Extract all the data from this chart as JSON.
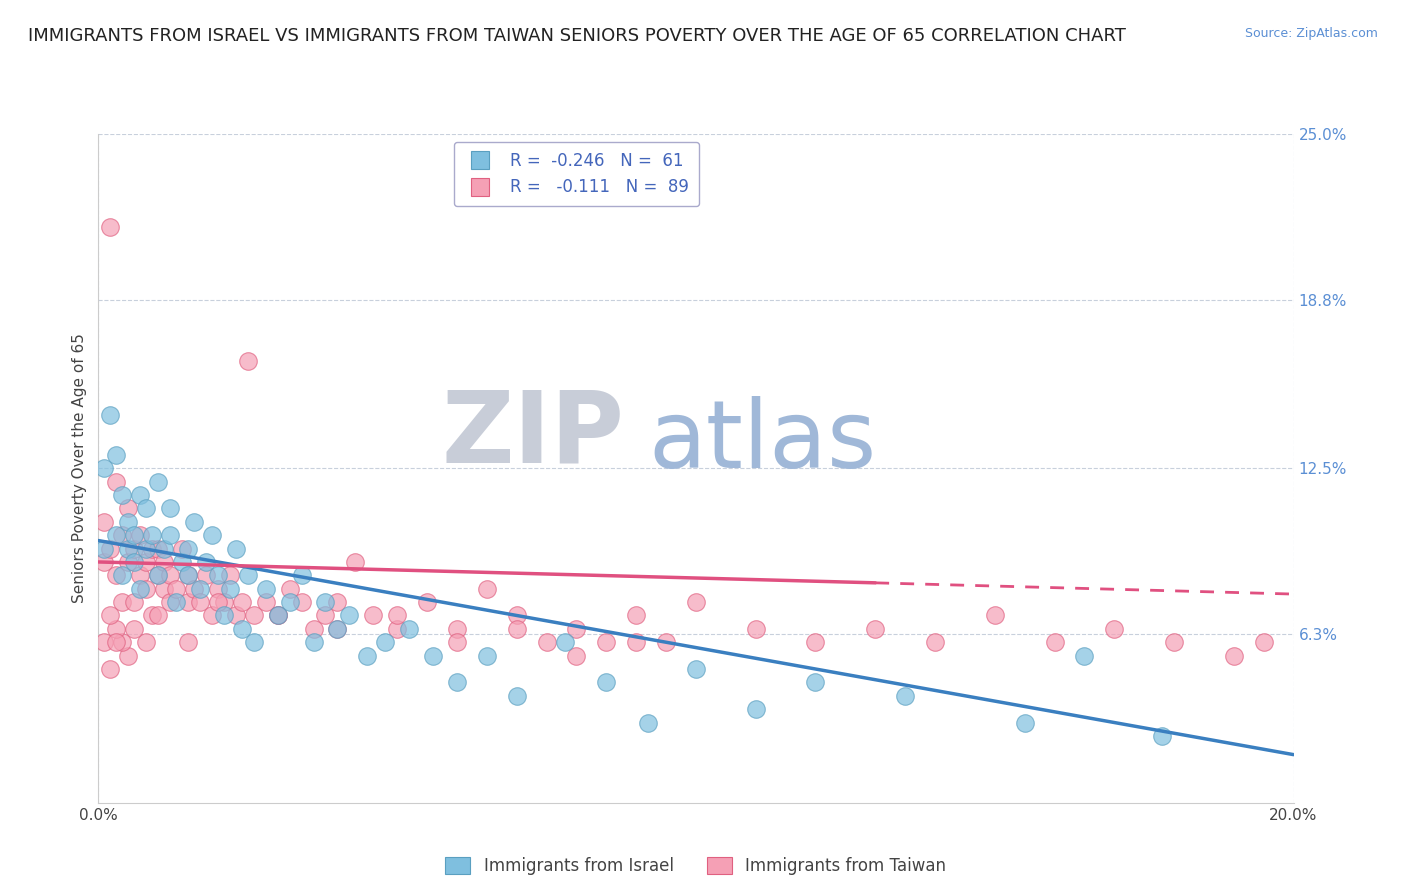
{
  "title": "IMMIGRANTS FROM ISRAEL VS IMMIGRANTS FROM TAIWAN SENIORS POVERTY OVER THE AGE OF 65 CORRELATION CHART",
  "source": "Source: ZipAtlas.com",
  "ylabel": "Seniors Poverty Over the Age of 65",
  "xlim": [
    0.0,
    0.2
  ],
  "ylim": [
    0.0,
    0.25
  ],
  "ytick_labels_right": [
    "6.3%",
    "12.5%",
    "18.8%",
    "25.0%"
  ],
  "yticks_right": [
    0.063,
    0.125,
    0.188,
    0.25
  ],
  "israel_color": "#7fbfdf",
  "taiwan_color": "#f5a0b5",
  "israel_edge_color": "#5a9fc0",
  "taiwan_edge_color": "#e06080",
  "israel_line_color": "#3a7fc0",
  "taiwan_line_color": "#e05080",
  "watermark_zip_color": "#c8cdd8",
  "watermark_atlas_color": "#a0b8d8",
  "grid_color": "#c8d0dc",
  "background_color": "#ffffff",
  "title_fontsize": 13,
  "axis_label_fontsize": 11,
  "tick_fontsize": 11,
  "legend_fontsize": 12,
  "legend_text_color": "#4466bb",
  "israel_line_y0": 0.098,
  "israel_line_y1": 0.018,
  "taiwan_line_y0": 0.09,
  "taiwan_line_y1": 0.078,
  "taiwan_line_solid_x": 0.13,
  "israel_scatter_x": [
    0.001,
    0.001,
    0.002,
    0.003,
    0.003,
    0.004,
    0.004,
    0.005,
    0.005,
    0.006,
    0.006,
    0.007,
    0.007,
    0.008,
    0.008,
    0.009,
    0.01,
    0.01,
    0.011,
    0.012,
    0.012,
    0.013,
    0.014,
    0.015,
    0.015,
    0.016,
    0.017,
    0.018,
    0.019,
    0.02,
    0.021,
    0.022,
    0.023,
    0.024,
    0.025,
    0.026,
    0.028,
    0.03,
    0.032,
    0.034,
    0.036,
    0.038,
    0.04,
    0.042,
    0.045,
    0.048,
    0.052,
    0.056,
    0.06,
    0.065,
    0.07,
    0.078,
    0.085,
    0.092,
    0.1,
    0.11,
    0.12,
    0.135,
    0.155,
    0.165,
    0.178
  ],
  "israel_scatter_y": [
    0.095,
    0.125,
    0.145,
    0.13,
    0.1,
    0.115,
    0.085,
    0.095,
    0.105,
    0.09,
    0.1,
    0.115,
    0.08,
    0.095,
    0.11,
    0.1,
    0.085,
    0.12,
    0.095,
    0.1,
    0.11,
    0.075,
    0.09,
    0.085,
    0.095,
    0.105,
    0.08,
    0.09,
    0.1,
    0.085,
    0.07,
    0.08,
    0.095,
    0.065,
    0.085,
    0.06,
    0.08,
    0.07,
    0.075,
    0.085,
    0.06,
    0.075,
    0.065,
    0.07,
    0.055,
    0.06,
    0.065,
    0.055,
    0.045,
    0.055,
    0.04,
    0.06,
    0.045,
    0.03,
    0.05,
    0.035,
    0.045,
    0.04,
    0.03,
    0.055,
    0.025
  ],
  "taiwan_scatter_x": [
    0.001,
    0.001,
    0.002,
    0.002,
    0.003,
    0.003,
    0.004,
    0.004,
    0.005,
    0.005,
    0.006,
    0.006,
    0.007,
    0.007,
    0.008,
    0.008,
    0.009,
    0.009,
    0.01,
    0.01,
    0.011,
    0.011,
    0.012,
    0.012,
    0.013,
    0.014,
    0.015,
    0.015,
    0.016,
    0.017,
    0.018,
    0.019,
    0.02,
    0.021,
    0.022,
    0.023,
    0.024,
    0.025,
    0.026,
    0.028,
    0.03,
    0.032,
    0.034,
    0.036,
    0.038,
    0.04,
    0.043,
    0.046,
    0.05,
    0.055,
    0.06,
    0.065,
    0.07,
    0.075,
    0.08,
    0.085,
    0.09,
    0.095,
    0.1,
    0.11,
    0.12,
    0.13,
    0.14,
    0.15,
    0.16,
    0.17,
    0.18,
    0.19,
    0.195,
    0.04,
    0.05,
    0.06,
    0.07,
    0.08,
    0.09,
    0.03,
    0.02,
    0.015,
    0.01,
    0.008,
    0.006,
    0.005,
    0.004,
    0.003,
    0.002,
    0.001,
    0.002,
    0.003
  ],
  "taiwan_scatter_y": [
    0.09,
    0.105,
    0.095,
    0.215,
    0.12,
    0.085,
    0.1,
    0.075,
    0.11,
    0.09,
    0.095,
    0.075,
    0.085,
    0.1,
    0.09,
    0.08,
    0.095,
    0.07,
    0.085,
    0.095,
    0.08,
    0.09,
    0.075,
    0.085,
    0.08,
    0.095,
    0.085,
    0.075,
    0.08,
    0.075,
    0.085,
    0.07,
    0.08,
    0.075,
    0.085,
    0.07,
    0.075,
    0.165,
    0.07,
    0.075,
    0.07,
    0.08,
    0.075,
    0.065,
    0.07,
    0.065,
    0.09,
    0.07,
    0.065,
    0.075,
    0.065,
    0.08,
    0.07,
    0.06,
    0.065,
    0.06,
    0.07,
    0.06,
    0.075,
    0.065,
    0.06,
    0.065,
    0.06,
    0.07,
    0.06,
    0.065,
    0.06,
    0.055,
    0.06,
    0.075,
    0.07,
    0.06,
    0.065,
    0.055,
    0.06,
    0.07,
    0.075,
    0.06,
    0.07,
    0.06,
    0.065,
    0.055,
    0.06,
    0.065,
    0.07,
    0.06,
    0.05,
    0.06
  ]
}
